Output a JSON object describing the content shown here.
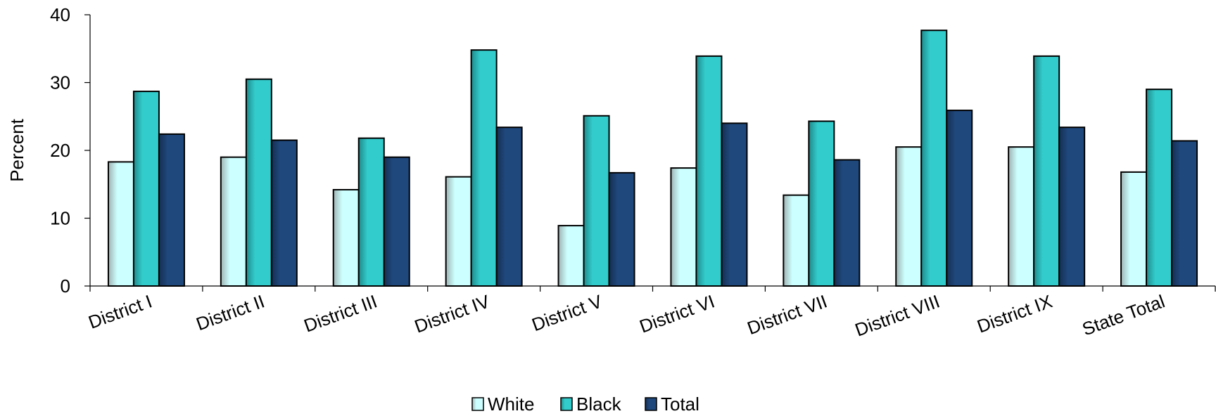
{
  "chart_data": {
    "type": "bar",
    "title": "",
    "xlabel": "",
    "ylabel": "Percent",
    "ylim": [
      0,
      40
    ],
    "yticks": [
      0,
      10,
      20,
      30,
      40
    ],
    "grid": false,
    "legend_position": "bottom",
    "categories": [
      "District I",
      "District II",
      "District III",
      "District IV",
      "District V",
      "District VI",
      "District VII",
      "District VIII",
      "District IX",
      "State Total"
    ],
    "series": [
      {
        "name": "White",
        "color": "#ccffff",
        "values": [
          18.3,
          19.0,
          14.2,
          16.1,
          8.9,
          17.4,
          13.4,
          20.5,
          20.5,
          16.8
        ]
      },
      {
        "name": "Black",
        "color": "#33cccc",
        "values": [
          28.7,
          30.5,
          21.8,
          34.8,
          25.1,
          33.9,
          24.3,
          37.7,
          33.9,
          29.0
        ]
      },
      {
        "name": "Total",
        "color": "#1f497d",
        "values": [
          22.4,
          21.5,
          19.0,
          23.4,
          16.7,
          24.0,
          18.6,
          25.9,
          23.4,
          21.4
        ]
      }
    ]
  }
}
